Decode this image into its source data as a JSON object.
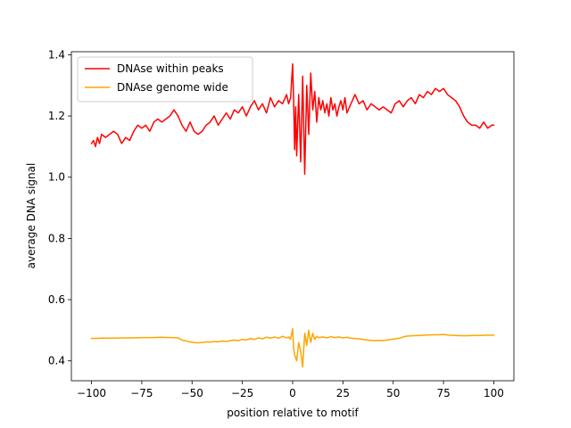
{
  "chart_data": {
    "type": "line",
    "title": "",
    "xlabel": "position relative to motif",
    "ylabel": "average DNA signal",
    "xlim": [
      -110,
      110
    ],
    "ylim": [
      0.335,
      1.41
    ],
    "xticks": [
      -100,
      -75,
      -50,
      -25,
      0,
      25,
      50,
      75,
      100
    ],
    "xtick_labels": [
      "−100",
      "−75",
      "−50",
      "−25",
      "0",
      "25",
      "50",
      "75",
      "100"
    ],
    "yticks": [
      0.4,
      0.6,
      0.8,
      1.0,
      1.2,
      1.4
    ],
    "ytick_labels": [
      "0.4",
      "0.6",
      "0.8",
      "1.0",
      "1.2",
      "1.4"
    ],
    "grid": false,
    "legend_position": "top-left",
    "series": [
      {
        "name": "DNAse within peaks",
        "color": "#ff0000",
        "points": [
          [
            -100,
            1.11
          ],
          [
            -99,
            1.12
          ],
          [
            -98,
            1.1
          ],
          [
            -97,
            1.13
          ],
          [
            -96,
            1.11
          ],
          [
            -95,
            1.14
          ],
          [
            -93,
            1.13
          ],
          [
            -91,
            1.14
          ],
          [
            -89,
            1.15
          ],
          [
            -87,
            1.14
          ],
          [
            -85,
            1.11
          ],
          [
            -83,
            1.13
          ],
          [
            -81,
            1.12
          ],
          [
            -79,
            1.15
          ],
          [
            -77,
            1.17
          ],
          [
            -75,
            1.16
          ],
          [
            -73,
            1.17
          ],
          [
            -71,
            1.15
          ],
          [
            -69,
            1.18
          ],
          [
            -67,
            1.19
          ],
          [
            -65,
            1.18
          ],
          [
            -63,
            1.19
          ],
          [
            -61,
            1.2
          ],
          [
            -59,
            1.22
          ],
          [
            -57,
            1.2
          ],
          [
            -55,
            1.17
          ],
          [
            -53,
            1.15
          ],
          [
            -51,
            1.18
          ],
          [
            -49,
            1.15
          ],
          [
            -47,
            1.14
          ],
          [
            -45,
            1.15
          ],
          [
            -43,
            1.17
          ],
          [
            -41,
            1.18
          ],
          [
            -39,
            1.2
          ],
          [
            -37,
            1.17
          ],
          [
            -35,
            1.19
          ],
          [
            -33,
            1.21
          ],
          [
            -31,
            1.19
          ],
          [
            -29,
            1.22
          ],
          [
            -27,
            1.21
          ],
          [
            -25,
            1.23
          ],
          [
            -23,
            1.2
          ],
          [
            -21,
            1.23
          ],
          [
            -19,
            1.25
          ],
          [
            -17,
            1.22
          ],
          [
            -15,
            1.24
          ],
          [
            -13,
            1.21
          ],
          [
            -11,
            1.26
          ],
          [
            -9,
            1.23
          ],
          [
            -7,
            1.25
          ],
          [
            -5,
            1.24
          ],
          [
            -3,
            1.27
          ],
          [
            -2,
            1.24
          ],
          [
            -1,
            1.26
          ],
          [
            0,
            1.37
          ],
          [
            0.5,
            1.25
          ],
          [
            1,
            1.09
          ],
          [
            1.5,
            1.23
          ],
          [
            2,
            1.07
          ],
          [
            3,
            1.27
          ],
          [
            4,
            1.05
          ],
          [
            5,
            1.33
          ],
          [
            6,
            1.01
          ],
          [
            7,
            1.3
          ],
          [
            8,
            1.14
          ],
          [
            9,
            1.34
          ],
          [
            10,
            1.22
          ],
          [
            11,
            1.28
          ],
          [
            12,
            1.18
          ],
          [
            13,
            1.26
          ],
          [
            14,
            1.22
          ],
          [
            15,
            1.25
          ],
          [
            16,
            1.21
          ],
          [
            17,
            1.24
          ],
          [
            18,
            1.2
          ],
          [
            19,
            1.26
          ],
          [
            20,
            1.22
          ],
          [
            21,
            1.24
          ],
          [
            22,
            1.2
          ],
          [
            23,
            1.23
          ],
          [
            24,
            1.25
          ],
          [
            25,
            1.22
          ],
          [
            26,
            1.26
          ],
          [
            27,
            1.21
          ],
          [
            29,
            1.24
          ],
          [
            31,
            1.27
          ],
          [
            33,
            1.24
          ],
          [
            35,
            1.25
          ],
          [
            37,
            1.22
          ],
          [
            39,
            1.24
          ],
          [
            41,
            1.23
          ],
          [
            43,
            1.22
          ],
          [
            45,
            1.23
          ],
          [
            47,
            1.22
          ],
          [
            49,
            1.21
          ],
          [
            51,
            1.24
          ],
          [
            53,
            1.25
          ],
          [
            55,
            1.23
          ],
          [
            57,
            1.25
          ],
          [
            59,
            1.26
          ],
          [
            61,
            1.24
          ],
          [
            63,
            1.27
          ],
          [
            65,
            1.26
          ],
          [
            67,
            1.28
          ],
          [
            69,
            1.27
          ],
          [
            71,
            1.29
          ],
          [
            73,
            1.28
          ],
          [
            75,
            1.29
          ],
          [
            77,
            1.27
          ],
          [
            79,
            1.26
          ],
          [
            81,
            1.25
          ],
          [
            83,
            1.23
          ],
          [
            85,
            1.2
          ],
          [
            87,
            1.18
          ],
          [
            89,
            1.17
          ],
          [
            91,
            1.17
          ],
          [
            93,
            1.16
          ],
          [
            95,
            1.18
          ],
          [
            97,
            1.16
          ],
          [
            99,
            1.17
          ],
          [
            100,
            1.17
          ]
        ]
      },
      {
        "name": "DNAse genome wide",
        "color": "#ffa500",
        "points": [
          [
            -100,
            0.473
          ],
          [
            -95,
            0.474
          ],
          [
            -90,
            0.474
          ],
          [
            -85,
            0.475
          ],
          [
            -80,
            0.475
          ],
          [
            -75,
            0.476
          ],
          [
            -70,
            0.476
          ],
          [
            -65,
            0.477
          ],
          [
            -60,
            0.476
          ],
          [
            -57,
            0.475
          ],
          [
            -55,
            0.468
          ],
          [
            -53,
            0.465
          ],
          [
            -51,
            0.462
          ],
          [
            -49,
            0.46
          ],
          [
            -47,
            0.459
          ],
          [
            -45,
            0.46
          ],
          [
            -43,
            0.462
          ],
          [
            -41,
            0.461
          ],
          [
            -39,
            0.463
          ],
          [
            -37,
            0.462
          ],
          [
            -35,
            0.465
          ],
          [
            -33,
            0.463
          ],
          [
            -31,
            0.466
          ],
          [
            -29,
            0.468
          ],
          [
            -27,
            0.466
          ],
          [
            -25,
            0.47
          ],
          [
            -23,
            0.468
          ],
          [
            -21,
            0.473
          ],
          [
            -19,
            0.47
          ],
          [
            -17,
            0.475
          ],
          [
            -15,
            0.472
          ],
          [
            -13,
            0.477
          ],
          [
            -11,
            0.474
          ],
          [
            -9,
            0.478
          ],
          [
            -7,
            0.474
          ],
          [
            -5,
            0.48
          ],
          [
            -3,
            0.475
          ],
          [
            -2,
            0.478
          ],
          [
            -1,
            0.47
          ],
          [
            0,
            0.505
          ],
          [
            0.5,
            0.44
          ],
          [
            1,
            0.42
          ],
          [
            2,
            0.4
          ],
          [
            3,
            0.46
          ],
          [
            4,
            0.43
          ],
          [
            5,
            0.38
          ],
          [
            6,
            0.49
          ],
          [
            7,
            0.45
          ],
          [
            8,
            0.5
          ],
          [
            9,
            0.46
          ],
          [
            10,
            0.49
          ],
          [
            11,
            0.47
          ],
          [
            12,
            0.48
          ],
          [
            13,
            0.476
          ],
          [
            15,
            0.478
          ],
          [
            17,
            0.475
          ],
          [
            19,
            0.479
          ],
          [
            21,
            0.476
          ],
          [
            23,
            0.478
          ],
          [
            25,
            0.475
          ],
          [
            27,
            0.477
          ],
          [
            29,
            0.474
          ],
          [
            31,
            0.473
          ],
          [
            33,
            0.472
          ],
          [
            35,
            0.47
          ],
          [
            37,
            0.468
          ],
          [
            39,
            0.467
          ],
          [
            41,
            0.466
          ],
          [
            43,
            0.467
          ],
          [
            45,
            0.466
          ],
          [
            47,
            0.468
          ],
          [
            49,
            0.47
          ],
          [
            51,
            0.472
          ],
          [
            53,
            0.474
          ],
          [
            55,
            0.478
          ],
          [
            57,
            0.481
          ],
          [
            60,
            0.482
          ],
          [
            63,
            0.483
          ],
          [
            66,
            0.484
          ],
          [
            69,
            0.485
          ],
          [
            72,
            0.485
          ],
          [
            75,
            0.486
          ],
          [
            78,
            0.484
          ],
          [
            81,
            0.483
          ],
          [
            84,
            0.482
          ],
          [
            87,
            0.482
          ],
          [
            90,
            0.483
          ],
          [
            93,
            0.483
          ],
          [
            96,
            0.484
          ],
          [
            100,
            0.484
          ]
        ]
      }
    ]
  }
}
